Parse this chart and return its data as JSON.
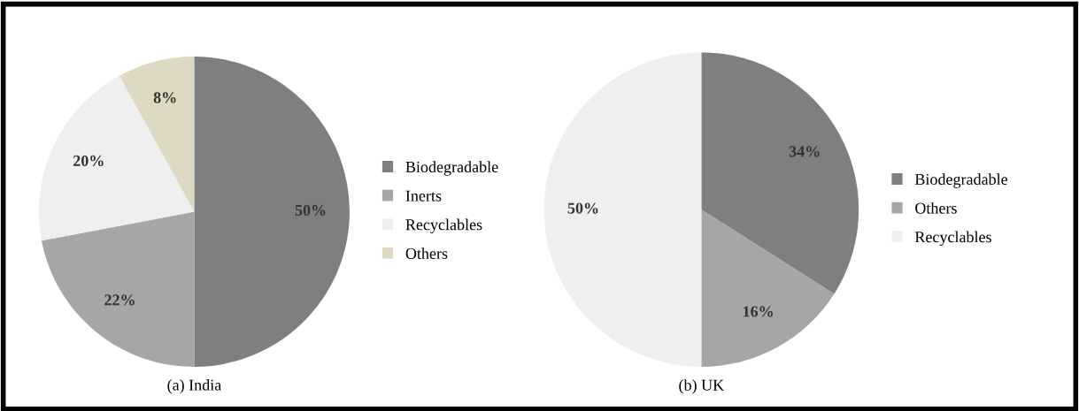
{
  "chart_data": [
    {
      "type": "pie",
      "title": "(a) India",
      "categories": [
        "Biodegradable",
        "Inerts",
        "Recyclables",
        "Others"
      ],
      "values": [
        50,
        22,
        20,
        8
      ],
      "value_labels": [
        "50%",
        "22%",
        "20%",
        "8%"
      ],
      "colors": [
        "#7f7f7f",
        "#a6a6a6",
        "#efefef",
        "#ddd9c3"
      ],
      "legend": "right"
    },
    {
      "type": "pie",
      "title": "(b) UK",
      "categories": [
        "Biodegradable",
        "Others",
        "Recyclables"
      ],
      "values": [
        34,
        16,
        50
      ],
      "value_labels": [
        "34%",
        "16%",
        "50%"
      ],
      "colors": [
        "#7f7f7f",
        "#a6a6a6",
        "#efefef"
      ],
      "legend": "right"
    }
  ]
}
